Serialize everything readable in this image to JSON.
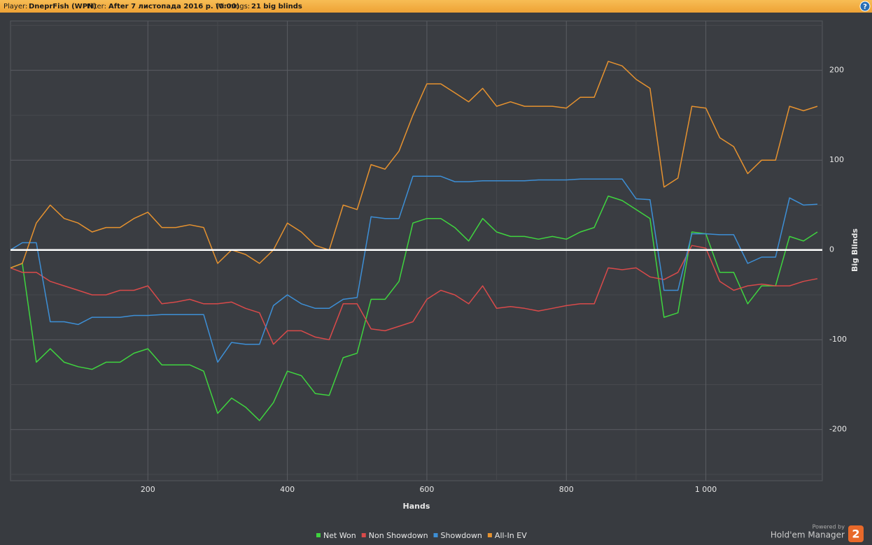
{
  "header": {
    "player_label": "Player:",
    "player": "DneprFish (WPN)",
    "filter_label": "Filter:",
    "filter": "After 7 листопада 2016 р. (0:00)",
    "winnings_label": "Winnings:",
    "winnings": "21 big blinds"
  },
  "chart_data": {
    "type": "line",
    "x_label": "Hands",
    "y_label": "Big Blinds",
    "x": [
      3,
      20,
      40,
      60,
      80,
      100,
      120,
      140,
      160,
      180,
      200,
      220,
      240,
      260,
      280,
      300,
      320,
      340,
      360,
      380,
      400,
      420,
      440,
      460,
      480,
      500,
      520,
      540,
      560,
      580,
      600,
      620,
      640,
      660,
      680,
      700,
      720,
      740,
      760,
      780,
      800,
      820,
      840,
      860,
      880,
      900,
      920,
      940,
      960,
      980,
      1000,
      1020,
      1040,
      1060,
      1080,
      1100,
      1120,
      1140,
      1160
    ],
    "xlim": [
      3,
      1167
    ],
    "xticks": [
      200,
      400,
      600,
      800,
      {
        "value": 1000,
        "label": "1 000"
      }
    ],
    "ylim": [
      -257,
      255
    ],
    "yticks": [
      200,
      100,
      0,
      -100,
      -200
    ],
    "baseline": 0,
    "grid": true,
    "series": [
      {
        "name": "Net Won",
        "color": "#3fd43f",
        "values": [
          -20,
          -15,
          -125,
          -110,
          -125,
          -130,
          -133,
          -125,
          -125,
          -115,
          -110,
          -128,
          -128,
          -128,
          -135,
          -182,
          -165,
          -175,
          -190,
          -170,
          -135,
          -140,
          -160,
          -162,
          -120,
          -115,
          -55,
          -55,
          -35,
          30,
          35,
          35,
          25,
          10,
          35,
          20,
          15,
          15,
          12,
          15,
          12,
          20,
          25,
          60,
          55,
          45,
          35,
          -75,
          -70,
          20,
          18,
          -25,
          -25,
          -60,
          -40,
          -40,
          15,
          10,
          20
        ]
      },
      {
        "name": "Non Showdown",
        "color": "#d94a4a",
        "values": [
          -20,
          -25,
          -25,
          -35,
          -40,
          -45,
          -50,
          -50,
          -45,
          -45,
          -40,
          -60,
          -58,
          -55,
          -60,
          -60,
          -58,
          -65,
          -70,
          -105,
          -90,
          -90,
          -97,
          -100,
          -60,
          -60,
          -88,
          -90,
          -85,
          -80,
          -55,
          -45,
          -50,
          -60,
          -40,
          -65,
          -63,
          -65,
          -68,
          -65,
          -62,
          -60,
          -60,
          -20,
          -22,
          -20,
          -30,
          -33,
          -25,
          5,
          2,
          -35,
          -45,
          -40,
          -38,
          -40,
          -40,
          -35,
          -32
        ]
      },
      {
        "name": "Showdown",
        "color": "#3d8fd6",
        "values": [
          0,
          8,
          8,
          -80,
          -80,
          -83,
          -75,
          -75,
          -75,
          -73,
          -73,
          -72,
          -72,
          -72,
          -72,
          -125,
          -103,
          -105,
          -105,
          -62,
          -50,
          -60,
          -65,
          -65,
          -55,
          -53,
          37,
          35,
          35,
          82,
          82,
          82,
          76,
          76,
          77,
          77,
          77,
          77,
          78,
          78,
          78,
          79,
          79,
          79,
          79,
          57,
          56,
          -45,
          -45,
          18,
          18,
          17,
          17,
          -15,
          -8,
          -8,
          58,
          50,
          51
        ]
      },
      {
        "name": "All-In EV",
        "color": "#e6922f",
        "values": [
          -20,
          -15,
          30,
          50,
          35,
          30,
          20,
          25,
          25,
          35,
          42,
          25,
          25,
          28,
          25,
          -15,
          0,
          -5,
          -15,
          0,
          30,
          20,
          5,
          0,
          50,
          45,
          95,
          90,
          110,
          150,
          185,
          185,
          175,
          165,
          180,
          160,
          165,
          160,
          160,
          160,
          158,
          170,
          170,
          210,
          205,
          190,
          180,
          70,
          80,
          160,
          158,
          125,
          115,
          85,
          100,
          100,
          160,
          155,
          160
        ]
      }
    ]
  },
  "footer": {
    "powered_by": "Powered by",
    "brand": "Hold'em Manager",
    "version": "2"
  }
}
